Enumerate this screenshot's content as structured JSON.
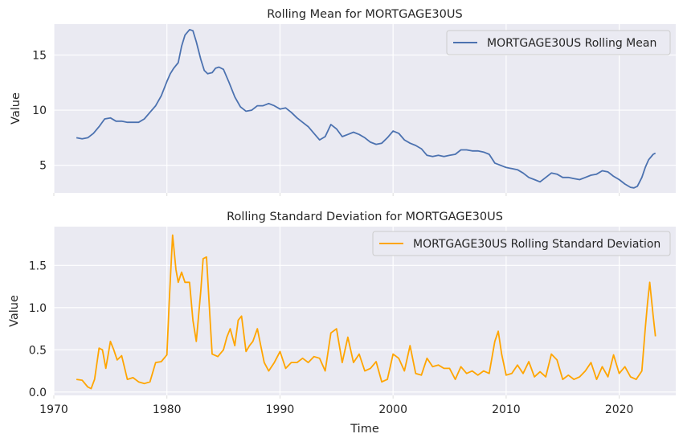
{
  "chart_data": [
    {
      "type": "line",
      "title": "Rolling Mean for MORTGAGE30US",
      "xlabel": "",
      "ylabel": "Value",
      "xlim": [
        1970,
        2025
      ],
      "ylim": [
        2.5,
        17.8
      ],
      "yticks": [
        5,
        10,
        15
      ],
      "ytick_labels": [
        "5",
        "10",
        "15"
      ],
      "grid": true,
      "legend_position": "top-right",
      "series": [
        {
          "name": "MORTGAGE30US Rolling Mean",
          "color": "#4c72b0",
          "x": [
            1972.0,
            1972.5,
            1973.0,
            1973.5,
            1974.0,
            1974.5,
            1975.0,
            1975.5,
            1976.0,
            1976.5,
            1977.0,
            1977.5,
            1978.0,
            1978.5,
            1979.0,
            1979.5,
            1980.0,
            1980.3,
            1980.6,
            1981.0,
            1981.3,
            1981.6,
            1982.0,
            1982.3,
            1982.6,
            1983.0,
            1983.3,
            1983.6,
            1984.0,
            1984.3,
            1984.6,
            1985.0,
            1985.5,
            1986.0,
            1986.5,
            1987.0,
            1987.5,
            1988.0,
            1988.5,
            1989.0,
            1989.5,
            1990.0,
            1990.5,
            1991.0,
            1991.5,
            1992.0,
            1992.5,
            1993.0,
            1993.5,
            1994.0,
            1994.5,
            1995.0,
            1995.5,
            1996.0,
            1996.5,
            1997.0,
            1997.5,
            1998.0,
            1998.5,
            1999.0,
            1999.5,
            2000.0,
            2000.5,
            2001.0,
            2001.5,
            2002.0,
            2002.5,
            2003.0,
            2003.5,
            2004.0,
            2004.5,
            2005.0,
            2005.5,
            2006.0,
            2006.5,
            2007.0,
            2007.5,
            2008.0,
            2008.5,
            2009.0,
            2009.5,
            2010.0,
            2010.5,
            2011.0,
            2011.5,
            2012.0,
            2012.5,
            2013.0,
            2013.5,
            2014.0,
            2014.5,
            2015.0,
            2015.5,
            2016.0,
            2016.5,
            2017.0,
            2017.5,
            2018.0,
            2018.5,
            2019.0,
            2019.5,
            2020.0,
            2020.5,
            2021.0,
            2021.3,
            2021.6,
            2022.0,
            2022.3,
            2022.6,
            2023.0,
            2023.2
          ],
          "y": [
            7.5,
            7.4,
            7.5,
            7.9,
            8.5,
            9.2,
            9.3,
            9.0,
            9.0,
            8.9,
            8.9,
            8.9,
            9.2,
            9.8,
            10.4,
            11.3,
            12.6,
            13.3,
            13.8,
            14.3,
            15.8,
            16.8,
            17.3,
            17.2,
            16.2,
            14.6,
            13.6,
            13.3,
            13.4,
            13.8,
            13.9,
            13.7,
            12.5,
            11.2,
            10.3,
            9.9,
            10.0,
            10.4,
            10.4,
            10.6,
            10.4,
            10.1,
            10.2,
            9.8,
            9.3,
            8.9,
            8.5,
            7.9,
            7.3,
            7.6,
            8.7,
            8.3,
            7.6,
            7.8,
            8.0,
            7.8,
            7.5,
            7.1,
            6.9,
            7.0,
            7.5,
            8.1,
            7.9,
            7.3,
            7.0,
            6.8,
            6.5,
            5.9,
            5.8,
            5.9,
            5.8,
            5.9,
            6.0,
            6.4,
            6.4,
            6.3,
            6.3,
            6.2,
            6.0,
            5.2,
            5.0,
            4.8,
            4.7,
            4.6,
            4.3,
            3.9,
            3.7,
            3.5,
            3.9,
            4.3,
            4.2,
            3.9,
            3.9,
            3.8,
            3.7,
            3.9,
            4.1,
            4.2,
            4.5,
            4.4,
            4.0,
            3.7,
            3.3,
            3.0,
            2.95,
            3.1,
            3.9,
            4.8,
            5.5,
            6.0,
            6.1
          ]
        }
      ]
    },
    {
      "type": "line",
      "title": "Rolling Standard Deviation for MORTGAGE30US",
      "xlabel": "Time",
      "ylabel": "Value",
      "xlim": [
        1970,
        2025
      ],
      "ylim": [
        -0.04,
        1.96
      ],
      "xticks": [
        1970,
        1980,
        1990,
        2000,
        2010,
        2020
      ],
      "xtick_labels": [
        "1970",
        "1980",
        "1990",
        "2000",
        "2010",
        "2020"
      ],
      "yticks": [
        0.0,
        0.5,
        1.0,
        1.5
      ],
      "ytick_labels": [
        "0.0",
        "0.5",
        "1.0",
        "1.5"
      ],
      "grid": true,
      "legend_position": "top-right",
      "series": [
        {
          "name": "MORTGAGE30US Rolling Standard Deviation",
          "color": "#ffa500",
          "x": [
            1972.0,
            1972.5,
            1973.0,
            1973.3,
            1973.6,
            1974.0,
            1974.3,
            1974.6,
            1975.0,
            1975.3,
            1975.6,
            1976.0,
            1976.5,
            1977.0,
            1977.5,
            1978.0,
            1978.5,
            1979.0,
            1979.5,
            1980.0,
            1980.2,
            1980.5,
            1980.8,
            1981.0,
            1981.3,
            1981.6,
            1982.0,
            1982.3,
            1982.6,
            1983.0,
            1983.2,
            1983.5,
            1983.8,
            1984.0,
            1984.5,
            1985.0,
            1985.3,
            1985.6,
            1986.0,
            1986.3,
            1986.6,
            1987.0,
            1987.3,
            1987.6,
            1988.0,
            1988.3,
            1988.6,
            1989.0,
            1989.5,
            1990.0,
            1990.5,
            1991.0,
            1991.5,
            1992.0,
            1992.5,
            1993.0,
            1993.5,
            1994.0,
            1994.5,
            1995.0,
            1995.5,
            1996.0,
            1996.5,
            1997.0,
            1997.5,
            1998.0,
            1998.5,
            1999.0,
            1999.5,
            2000.0,
            2000.5,
            2001.0,
            2001.5,
            2002.0,
            2002.5,
            2003.0,
            2003.5,
            2004.0,
            2004.5,
            2005.0,
            2005.5,
            2006.0,
            2006.5,
            2007.0,
            2007.5,
            2008.0,
            2008.5,
            2009.0,
            2009.3,
            2009.6,
            2010.0,
            2010.5,
            2011.0,
            2011.5,
            2012.0,
            2012.5,
            2013.0,
            2013.5,
            2014.0,
            2014.5,
            2015.0,
            2015.5,
            2016.0,
            2016.5,
            2017.0,
            2017.5,
            2018.0,
            2018.5,
            2019.0,
            2019.5,
            2020.0,
            2020.5,
            2021.0,
            2021.5,
            2022.0,
            2022.3,
            2022.5,
            2022.7,
            2023.0,
            2023.2
          ],
          "y": [
            0.15,
            0.14,
            0.06,
            0.04,
            0.15,
            0.52,
            0.5,
            0.28,
            0.6,
            0.5,
            0.38,
            0.43,
            0.15,
            0.17,
            0.12,
            0.1,
            0.12,
            0.35,
            0.36,
            0.44,
            1.05,
            1.86,
            1.45,
            1.3,
            1.42,
            1.3,
            1.3,
            0.85,
            0.6,
            1.2,
            1.58,
            1.6,
            0.9,
            0.45,
            0.42,
            0.5,
            0.65,
            0.75,
            0.55,
            0.85,
            0.9,
            0.48,
            0.55,
            0.6,
            0.75,
            0.55,
            0.35,
            0.25,
            0.35,
            0.48,
            0.28,
            0.35,
            0.35,
            0.4,
            0.35,
            0.42,
            0.4,
            0.25,
            0.7,
            0.75,
            0.35,
            0.65,
            0.35,
            0.45,
            0.25,
            0.28,
            0.36,
            0.12,
            0.15,
            0.45,
            0.4,
            0.25,
            0.55,
            0.22,
            0.2,
            0.4,
            0.3,
            0.32,
            0.28,
            0.28,
            0.15,
            0.3,
            0.22,
            0.25,
            0.2,
            0.25,
            0.22,
            0.6,
            0.72,
            0.45,
            0.2,
            0.22,
            0.32,
            0.22,
            0.36,
            0.18,
            0.24,
            0.18,
            0.45,
            0.38,
            0.15,
            0.2,
            0.15,
            0.18,
            0.25,
            0.35,
            0.15,
            0.3,
            0.18,
            0.44,
            0.22,
            0.3,
            0.18,
            0.15,
            0.25,
            0.75,
            1.05,
            1.3,
            0.9,
            0.66
          ]
        }
      ]
    }
  ]
}
